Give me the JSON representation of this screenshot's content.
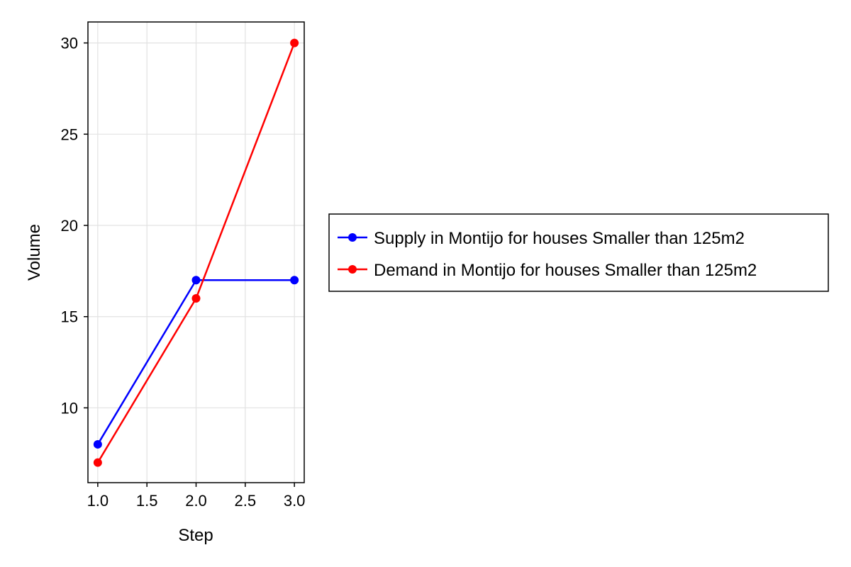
{
  "chart_data": {
    "type": "line",
    "title": "",
    "xlabel": "Step",
    "ylabel": "Volume",
    "xlim": [
      0.9,
      3.1
    ],
    "ylim": [
      5.9,
      31.15
    ],
    "xticks": [
      1.0,
      1.5,
      2.0,
      2.5,
      3.0
    ],
    "xtick_labels": [
      "1.0",
      "1.5",
      "2.0",
      "2.5",
      "3.0"
    ],
    "yticks": [
      10,
      15,
      20,
      25,
      30
    ],
    "ytick_labels": [
      "10",
      "15",
      "20",
      "25",
      "30"
    ],
    "grid": true,
    "legend_position": "right",
    "x": [
      1,
      2,
      3
    ],
    "series": [
      {
        "name": "Supply in Montijo for houses Smaller than 125m2",
        "color": "#0000ff",
        "values": [
          8,
          17,
          17
        ]
      },
      {
        "name": "Demand in Montijo for houses Smaller than 125m2",
        "color": "#ff0000",
        "values": [
          7,
          16,
          30
        ]
      }
    ]
  }
}
